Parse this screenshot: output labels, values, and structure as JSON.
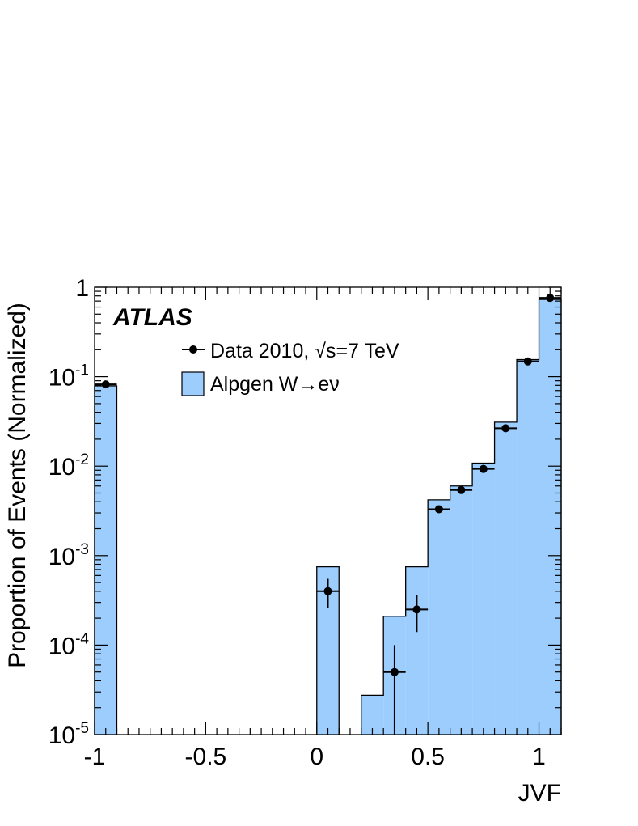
{
  "chart_data": {
    "type": "histogram",
    "brand": "ATLAS",
    "xlabel": "JVF",
    "ylabel": "Proportion of Events (Normalized)",
    "xlim": [
      -1.0,
      1.1
    ],
    "ylim": [
      1e-05,
      1
    ],
    "yscale": "log",
    "x_ticks": [
      {
        "value": -1,
        "label": "-1"
      },
      {
        "value": -0.5,
        "label": "-0.5"
      },
      {
        "value": 0,
        "label": "0"
      },
      {
        "value": 0.5,
        "label": "0.5"
      },
      {
        "value": 1,
        "label": "1"
      }
    ],
    "y_ticks": [
      {
        "value": 1,
        "base": "1",
        "exp": ""
      },
      {
        "value": 0.1,
        "base": "10",
        "exp": "-1"
      },
      {
        "value": 0.01,
        "base": "10",
        "exp": "-2"
      },
      {
        "value": 0.001,
        "base": "10",
        "exp": "-3"
      },
      {
        "value": 0.0001,
        "base": "10",
        "exp": "-4"
      },
      {
        "value": 1e-05,
        "base": "10",
        "exp": "-5"
      }
    ],
    "legend_position": "top-left",
    "series": [
      {
        "name": "Alpgen W→eν",
        "kind": "filled-histogram",
        "color": "#9ccdfc",
        "bins": [
          {
            "x0": -1.0,
            "x1": -0.9,
            "value": 0.079
          },
          {
            "x0": 0.0,
            "x1": 0.1,
            "value": 0.00075
          },
          {
            "x0": 0.2,
            "x1": 0.3,
            "value": 2.75e-05
          },
          {
            "x0": 0.3,
            "x1": 0.4,
            "value": 0.00021
          },
          {
            "x0": 0.4,
            "x1": 0.5,
            "value": 0.00075
          },
          {
            "x0": 0.5,
            "x1": 0.6,
            "value": 0.0042
          },
          {
            "x0": 0.6,
            "x1": 0.7,
            "value": 0.006
          },
          {
            "x0": 0.7,
            "x1": 0.8,
            "value": 0.0108
          },
          {
            "x0": 0.8,
            "x1": 0.9,
            "value": 0.031
          },
          {
            "x0": 0.9,
            "x1": 1.0,
            "value": 0.155
          },
          {
            "x0": 1.0,
            "x1": 1.1,
            "value": 0.73
          }
        ]
      },
      {
        "name": "Data 2010, √s=7 TeV",
        "kind": "points",
        "color": "#000000",
        "points": [
          {
            "x": -0.95,
            "xerr": 0.05,
            "y": 0.082,
            "ylo": 0.081,
            "yhi": 0.083
          },
          {
            "x": 0.05,
            "xerr": 0.05,
            "y": 0.0004,
            "ylo": 0.00026,
            "yhi": 0.00055
          },
          {
            "x": 0.35,
            "xerr": 0.05,
            "y": 5e-05,
            "ylo": 1e-05,
            "yhi": 0.0001
          },
          {
            "x": 0.45,
            "xerr": 0.05,
            "y": 0.00025,
            "ylo": 0.00014,
            "yhi": 0.00036
          },
          {
            "x": 0.55,
            "xerr": 0.05,
            "y": 0.0033,
            "ylo": 0.0031,
            "yhi": 0.0035
          },
          {
            "x": 0.65,
            "xerr": 0.05,
            "y": 0.0054,
            "ylo": 0.0052,
            "yhi": 0.0056
          },
          {
            "x": 0.75,
            "xerr": 0.05,
            "y": 0.0093,
            "ylo": 0.0091,
            "yhi": 0.0095
          },
          {
            "x": 0.85,
            "xerr": 0.05,
            "y": 0.0265,
            "ylo": 0.026,
            "yhi": 0.027
          },
          {
            "x": 0.95,
            "xerr": 0.05,
            "y": 0.148,
            "ylo": 0.146,
            "yhi": 0.15
          },
          {
            "x": 1.05,
            "xerr": 0.05,
            "y": 0.76,
            "ylo": 0.755,
            "yhi": 0.765
          }
        ]
      }
    ]
  }
}
